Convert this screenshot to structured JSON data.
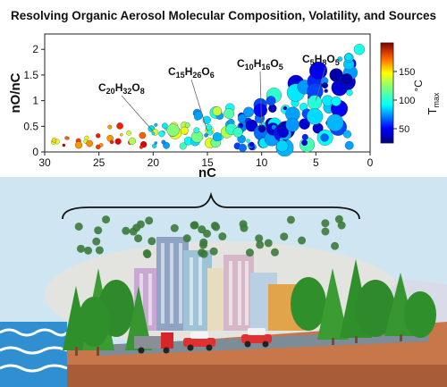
{
  "title": "Resolving Organic Aerosol Molecular Composition, Volatility, and Sources",
  "colors": {
    "sky": "#c9e3f0",
    "ground": "#c7774a",
    "water": "#2f8fd0",
    "tree": "#2f8f2a",
    "particle": "#3c7a3c"
  },
  "chart_data": {
    "type": "scatter",
    "xlabel": "nC",
    "ylabel": "nO/nC",
    "xlim": [
      30,
      0
    ],
    "ylim": [
      0,
      2.3
    ],
    "xticks": [
      30,
      25,
      20,
      15,
      10,
      5,
      0
    ],
    "yticks": [
      0,
      0.5,
      1,
      1.5,
      2
    ],
    "colorbar": {
      "label": "T",
      "label_sub": "max",
      "unit": "°C",
      "range": [
        25,
        200
      ],
      "ticks": [
        50,
        100,
        150
      ]
    },
    "annotations": [
      {
        "label": "C20H32O8",
        "parts": [
          "C",
          "20",
          "H",
          "32",
          "O",
          "8"
        ],
        "x": 20,
        "y": 0.4
      },
      {
        "label": "C15H26O6",
        "parts": [
          "C",
          "15",
          "H",
          "26",
          "O",
          "6"
        ],
        "x": 15,
        "y": 0.4
      },
      {
        "label": "C10H16O5",
        "parts": [
          "C",
          "10",
          "H",
          "16",
          "O",
          "5"
        ],
        "x": 10,
        "y": 0.5
      },
      {
        "label": "C5H8O5",
        "parts": [
          "C",
          "5",
          "H",
          "8",
          "O",
          "5"
        ],
        "x": 5,
        "y": 1.0
      }
    ]
  }
}
